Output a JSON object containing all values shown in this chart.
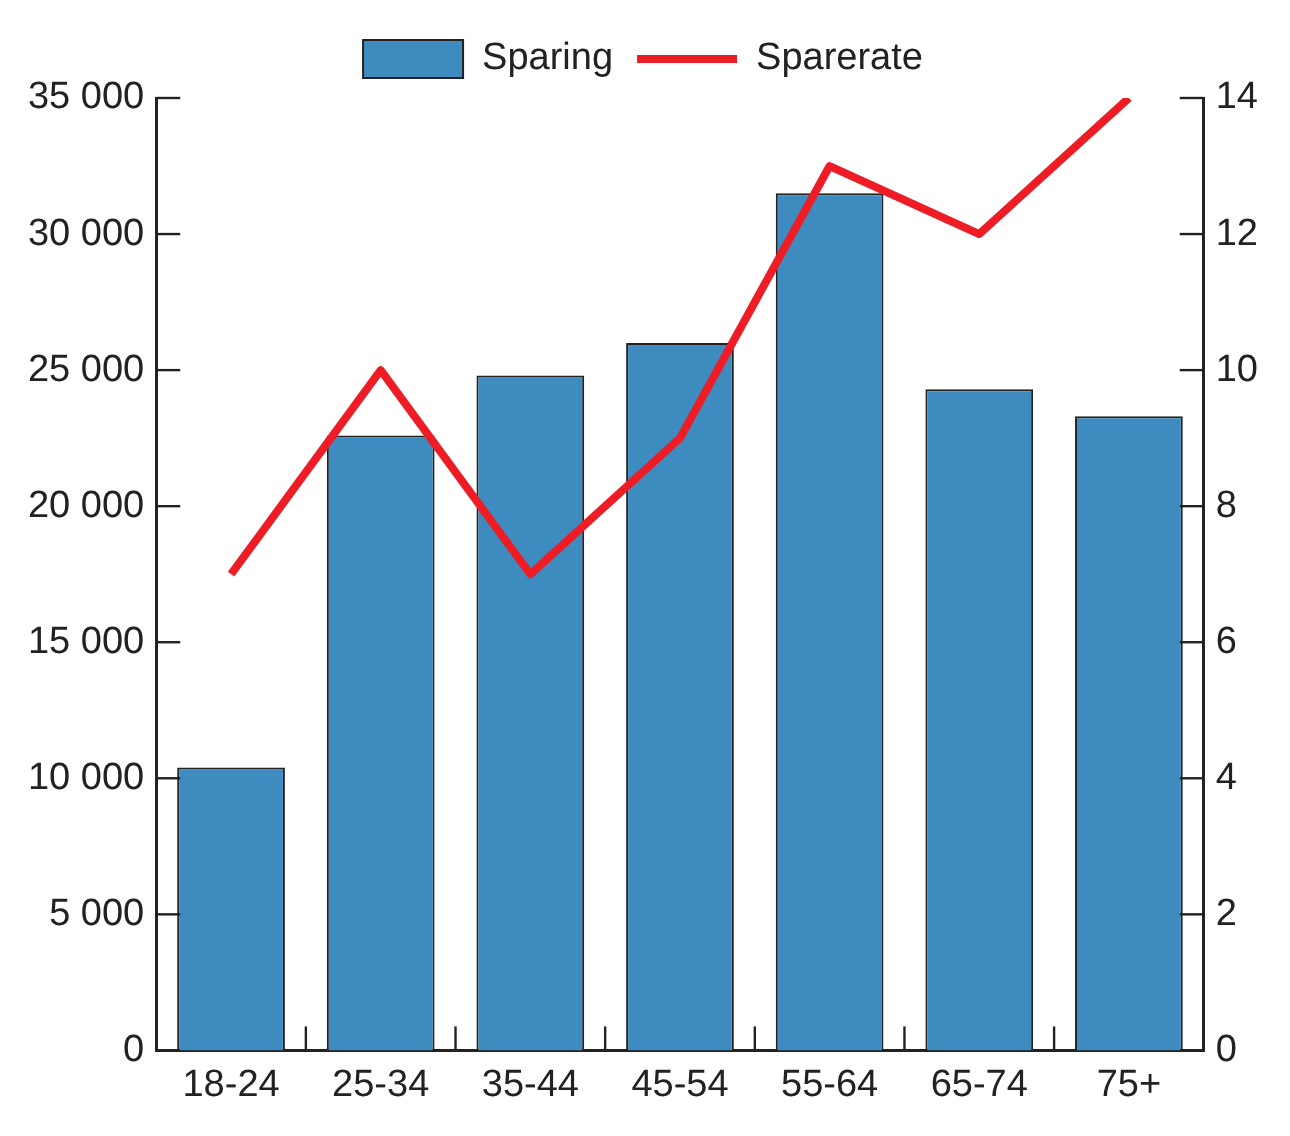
{
  "chart_data": {
    "type": "bar",
    "categories": [
      "18-24",
      "25-34",
      "35-44",
      "45-54",
      "55-64",
      "65-74",
      "75+"
    ],
    "series": [
      {
        "name": "Sparing",
        "color": "#3d8bbf",
        "values": [
          10400,
          22600,
          24800,
          26000,
          31500,
          24300,
          23300
        ]
      },
      {
        "name": "Sparerate",
        "type": "line",
        "color": "#ee1c25",
        "axis": "y2",
        "values": [
          7,
          10,
          7,
          9,
          13,
          12,
          14
        ]
      }
    ],
    "ylim": [
      0,
      35000
    ],
    "yticks": [
      {
        "value": 0,
        "label": "0"
      },
      {
        "value": 5000,
        "label": "5 000"
      },
      {
        "value": 10000,
        "label": "10 000"
      },
      {
        "value": 15000,
        "label": "15 000"
      },
      {
        "value": 20000,
        "label": "20 000"
      },
      {
        "value": 25000,
        "label": "25 000"
      },
      {
        "value": 30000,
        "label": "30 000"
      },
      {
        "value": 35000,
        "label": "35 000"
      }
    ],
    "y2lim": [
      0,
      14
    ],
    "y2ticks": [
      0,
      2,
      4,
      6,
      8,
      10,
      12,
      14
    ],
    "grid": false,
    "legend": "top",
    "marker": "none",
    "line_style": "solid"
  }
}
